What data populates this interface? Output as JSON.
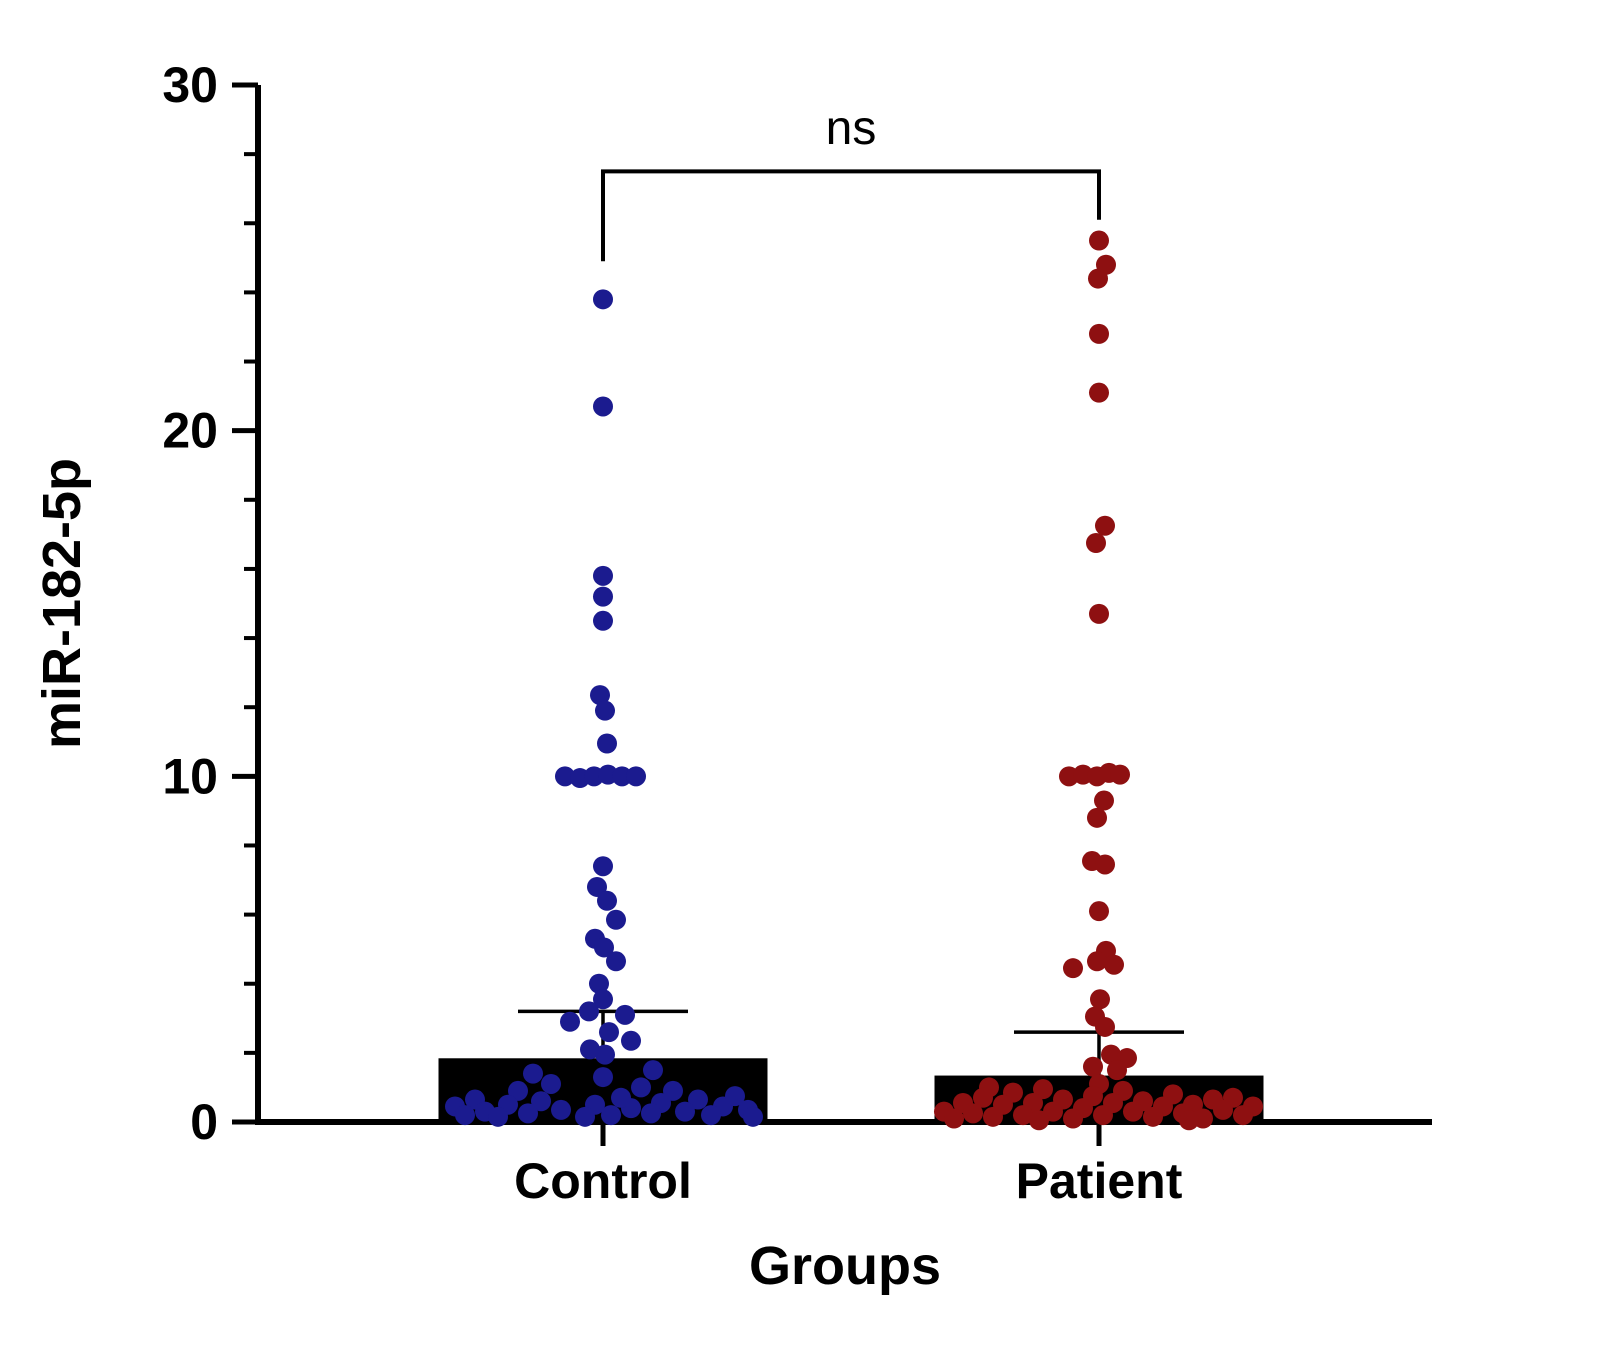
{
  "figure": {
    "background": "#ffffff",
    "axis_color": "#000000"
  },
  "chart_data": {
    "type": "scatter-bar",
    "title": "",
    "xlabel": "Groups",
    "ylabel": "miR-182-5p",
    "ylim": [
      0,
      30
    ],
    "y_major_ticks": [
      0,
      10,
      20,
      30
    ],
    "y_minor_step": 2,
    "grid": false,
    "legend": "none",
    "categories": [
      "Control",
      "Patient"
    ],
    "annotation": {
      "label": "ns",
      "bracket_y": 27.5,
      "left_drop_to": 24.9,
      "right_drop_to": 26.1,
      "label_y": 28.3
    },
    "series": [
      {
        "name": "Control",
        "dot_color": "#1b1b8f",
        "bar_color": "#000000",
        "bar_mean": 1.8,
        "error_top": 3.2,
        "points": [
          [
            0,
            23.8
          ],
          [
            0,
            20.7
          ],
          [
            0,
            15.8
          ],
          [
            0,
            15.2
          ],
          [
            0,
            14.5
          ],
          [
            -3,
            12.35
          ],
          [
            2,
            11.9
          ],
          [
            4,
            10.95
          ],
          [
            -38,
            10.0
          ],
          [
            -23,
            9.95
          ],
          [
            -9,
            10.0
          ],
          [
            5,
            10.05
          ],
          [
            19,
            10.0
          ],
          [
            33,
            10.0
          ],
          [
            0,
            7.4
          ],
          [
            -6,
            6.8
          ],
          [
            4,
            6.4
          ],
          [
            13,
            5.85
          ],
          [
            -8,
            5.3
          ],
          [
            1,
            5.05
          ],
          [
            13,
            4.65
          ],
          [
            -4,
            4.0
          ],
          [
            0,
            3.55
          ],
          [
            -14,
            3.2
          ],
          [
            22,
            3.1
          ],
          [
            -33,
            2.9
          ],
          [
            6,
            2.6
          ],
          [
            28,
            2.35
          ],
          [
            -13,
            2.1
          ],
          [
            2,
            1.95
          ],
          [
            -70,
            1.4
          ],
          [
            50,
            1.5
          ],
          [
            0,
            1.3
          ],
          [
            -52,
            1.1
          ],
          [
            38,
            1.0
          ],
          [
            -85,
            0.9
          ],
          [
            70,
            0.9
          ],
          [
            -128,
            0.65
          ],
          [
            95,
            0.65
          ],
          [
            -62,
            0.6
          ],
          [
            58,
            0.55
          ],
          [
            -95,
            0.5
          ],
          [
            -8,
            0.5
          ],
          [
            -148,
            0.45
          ],
          [
            120,
            0.45
          ],
          [
            -42,
            0.35
          ],
          [
            145,
            0.35
          ],
          [
            -118,
            0.3
          ],
          [
            82,
            0.3
          ],
          [
            -75,
            0.25
          ],
          [
            48,
            0.25
          ],
          [
            -138,
            0.2
          ],
          [
            8,
            0.2
          ],
          [
            108,
            0.2
          ],
          [
            -105,
            0.15
          ],
          [
            -18,
            0.15
          ],
          [
            150,
            0.15
          ],
          [
            28,
            0.4
          ],
          [
            18,
            0.7
          ],
          [
            132,
            0.75
          ]
        ]
      },
      {
        "name": "Patient",
        "dot_color": "#8e1011",
        "bar_color": "#000000",
        "bar_mean": 1.3,
        "error_top": 2.6,
        "points": [
          [
            0,
            25.5
          ],
          [
            7,
            24.8
          ],
          [
            -1,
            24.4
          ],
          [
            0,
            22.8
          ],
          [
            0,
            21.1
          ],
          [
            6,
            17.25
          ],
          [
            -3,
            16.75
          ],
          [
            0,
            14.7
          ],
          [
            -30,
            10.0
          ],
          [
            -16,
            10.05
          ],
          [
            -2,
            10.0
          ],
          [
            10,
            10.1
          ],
          [
            21,
            10.05
          ],
          [
            5,
            9.3
          ],
          [
            -2,
            8.8
          ],
          [
            -7,
            7.55
          ],
          [
            6,
            7.45
          ],
          [
            0,
            6.1
          ],
          [
            7,
            4.95
          ],
          [
            -2,
            4.65
          ],
          [
            15,
            4.55
          ],
          [
            -26,
            4.45
          ],
          [
            1,
            3.55
          ],
          [
            -4,
            3.05
          ],
          [
            6,
            2.75
          ],
          [
            12,
            1.95
          ],
          [
            28,
            1.85
          ],
          [
            -6,
            1.6
          ],
          [
            18,
            1.5
          ],
          [
            0,
            1.1
          ],
          [
            -110,
            1.0
          ],
          [
            -56,
            0.95
          ],
          [
            24,
            0.9
          ],
          [
            -86,
            0.85
          ],
          [
            74,
            0.8
          ],
          [
            -6,
            0.75
          ],
          [
            -116,
            0.7
          ],
          [
            134,
            0.7
          ],
          [
            -36,
            0.65
          ],
          [
            114,
            0.65
          ],
          [
            44,
            0.6
          ],
          [
            -66,
            0.55
          ],
          [
            14,
            0.55
          ],
          [
            -96,
            0.5
          ],
          [
            94,
            0.5
          ],
          [
            -136,
            0.55
          ],
          [
            64,
            0.45
          ],
          [
            154,
            0.45
          ],
          [
            -16,
            0.4
          ],
          [
            -46,
            0.3
          ],
          [
            34,
            0.3
          ],
          [
            -155,
            0.3
          ],
          [
            124,
            0.35
          ],
          [
            -126,
            0.25
          ],
          [
            84,
            0.25
          ],
          [
            -76,
            0.2
          ],
          [
            4,
            0.2
          ],
          [
            144,
            0.2
          ],
          [
            -106,
            0.15
          ],
          [
            54,
            0.15
          ],
          [
            -26,
            0.1
          ],
          [
            104,
            0.1
          ],
          [
            -145,
            0.1
          ],
          [
            -60,
            0.05
          ],
          [
            90,
            0.05
          ]
        ]
      }
    ]
  }
}
